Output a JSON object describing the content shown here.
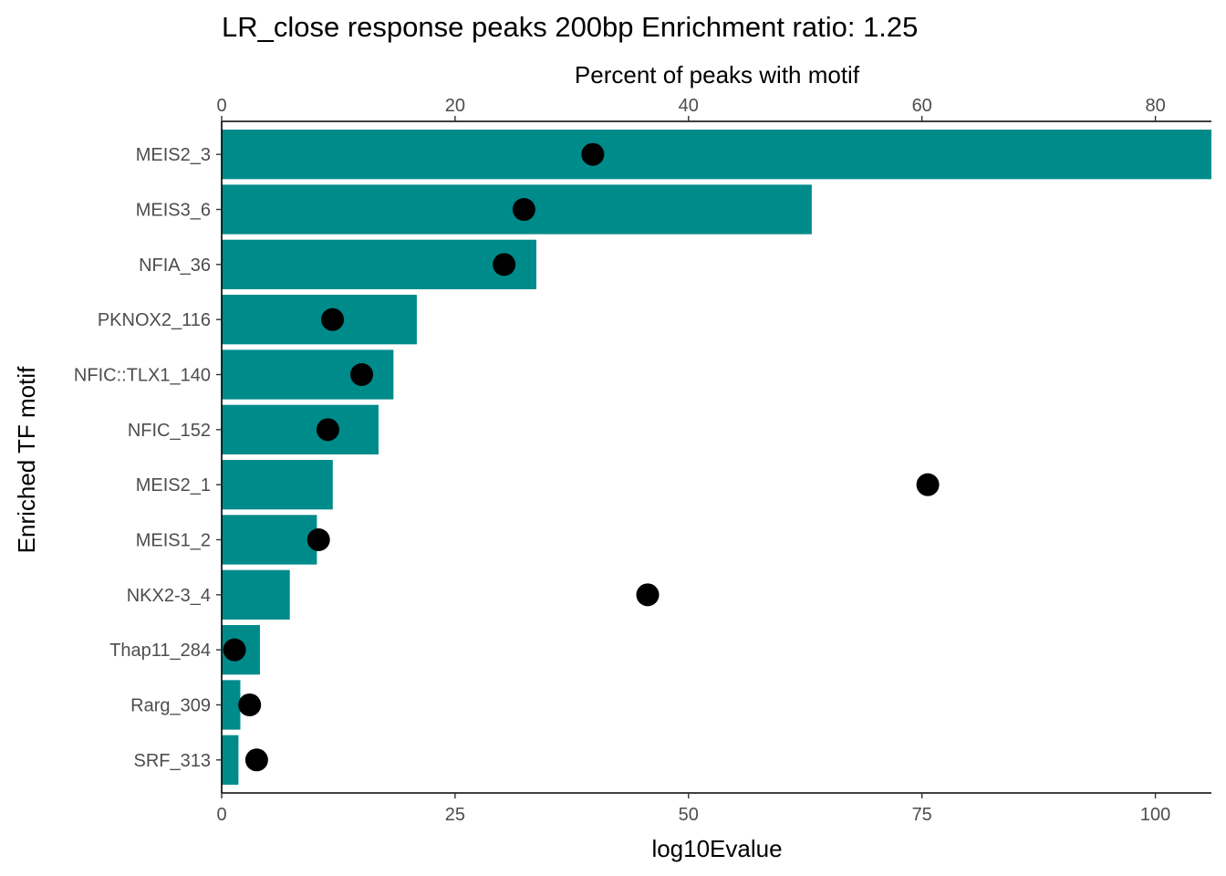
{
  "chart_data": {
    "type": "bar",
    "orientation": "horizontal",
    "title": "LR_close response peaks 200bp Enrichment ratio: 1.25",
    "xlabel": "log10Evalue",
    "xlabel_top": "Percent of peaks with motif",
    "ylabel": "Enriched TF motif",
    "categories": [
      "MEIS2_3",
      "MEIS3_6",
      "NFIA_36",
      "PKNOX2_116",
      "NFIC::TLX1_140",
      "NFIC_152",
      "MEIS2_1",
      "MEIS1_2",
      "NKX2-3_4",
      "Thap11_284",
      "Rarg_309",
      "SRF_313"
    ],
    "series": [
      {
        "axis": "bottom",
        "mark": "bar",
        "values": [
          106,
          63.2,
          33.7,
          20.9,
          18.4,
          16.8,
          11.9,
          10.2,
          7.3,
          4.1,
          2.0,
          1.8
        ]
      },
      {
        "axis": "top",
        "mark": "point",
        "values": [
          31.8,
          25.9,
          24.2,
          9.5,
          12.0,
          9.1,
          60.5,
          8.3,
          36.5,
          1.1,
          2.4,
          3.0
        ]
      }
    ],
    "x_bottom_ticks": [
      "0",
      "25",
      "50",
      "75",
      "100"
    ],
    "x_top_ticks": [
      "0",
      "20",
      "40",
      "60",
      "80"
    ],
    "x_bottom_range": [
      0,
      106
    ],
    "x_top_range": [
      0,
      84.8
    ],
    "bar_color": "#008b8b",
    "point_color": "#000000",
    "grid": false,
    "legend": "none"
  }
}
